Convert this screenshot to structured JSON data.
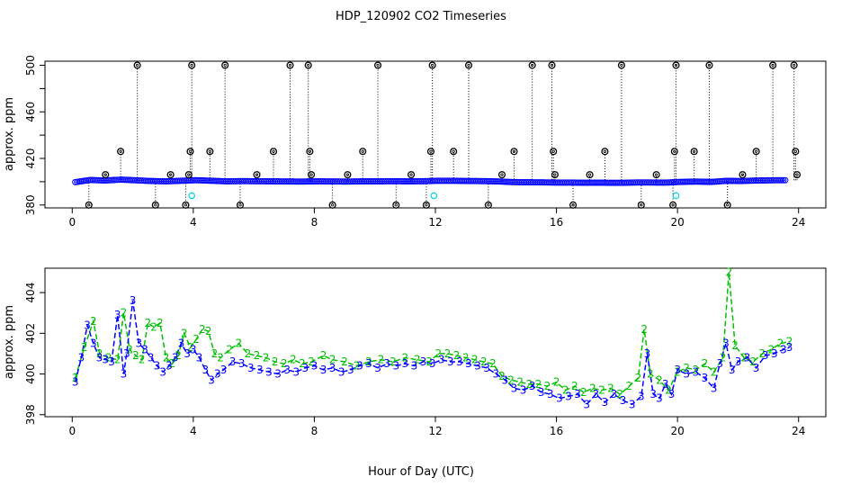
{
  "figure": {
    "title": "HDP_120902  CO2 Timeseries",
    "xlabel": "Hour of Day (UTC)"
  },
  "chart_data": [
    {
      "type": "scatter",
      "ylabel": "approx. ppm",
      "xlim": [
        -0.9,
        24.9
      ],
      "ylim": [
        377.5,
        503.5
      ],
      "xticks": [
        0,
        4,
        8,
        12,
        16,
        20,
        24
      ],
      "yticks": [
        380,
        420,
        460,
        500
      ],
      "yticks_minor": [
        400,
        440,
        480
      ],
      "grid": false,
      "colors": {
        "blue": "#0000ff",
        "cyan": "#00d8d8",
        "flag": "#000000"
      },
      "series": [
        {
          "style": "blue-circles",
          "x": [
            0.1,
            0.6,
            1.1,
            1.6,
            2.1,
            2.6,
            3.1,
            3.6,
            4.1,
            4.6,
            5.1,
            5.6,
            6.1,
            6.6,
            7.1,
            7.6,
            8.1,
            8.6,
            9.1,
            9.6,
            10.1,
            10.6,
            11.1,
            11.6,
            12.1,
            12.6,
            13.1,
            13.6,
            14.1,
            14.6,
            15.1,
            15.6,
            16.1,
            16.6,
            17.1,
            17.6,
            18.1,
            18.6,
            19.1,
            19.6,
            20.1,
            20.6,
            21.1,
            21.6,
            22.1,
            22.6,
            23.1,
            23.6
          ],
          "y": [
            399.6,
            401.5,
            401.0,
            401.8,
            401.2,
            400.6,
            400.3,
            400.8,
            401.3,
            400.8,
            400.3,
            400.5,
            400.4,
            400.3,
            400.2,
            400.1,
            400.3,
            400.2,
            400.1,
            400.3,
            400.3,
            400.4,
            400.3,
            400.4,
            400.8,
            400.8,
            400.6,
            400.5,
            400.2,
            399.6,
            399.5,
            399.4,
            399.2,
            399.2,
            399.1,
            399.1,
            399.0,
            399.3,
            399.3,
            399.2,
            399.8,
            400.1,
            399.8,
            400.7,
            400.6,
            401.0,
            401.2,
            401.3
          ]
        },
        {
          "style": "cyan-circles",
          "x": [
            3.95,
            11.95,
            19.95
          ],
          "y": [
            388,
            388,
            388
          ]
        },
        {
          "style": "flag-circles",
          "x": [
            0.55,
            1.1,
            1.6,
            2.15,
            2.75,
            3.25,
            3.75,
            3.85,
            3.9,
            3.95,
            4.55,
            5.05,
            5.55,
            6.1,
            6.65,
            7.2,
            7.8,
            7.85,
            7.9,
            8.6,
            9.1,
            9.6,
            10.1,
            10.7,
            11.2,
            11.7,
            11.85,
            11.9,
            12.6,
            13.1,
            13.75,
            14.2,
            14.6,
            15.2,
            15.85,
            15.9,
            15.95,
            16.55,
            17.1,
            17.6,
            18.15,
            18.8,
            19.3,
            19.85,
            19.9,
            19.95,
            20.55,
            21.05,
            21.65,
            22.15,
            22.6,
            23.15,
            23.85,
            23.9,
            23.95
          ],
          "y": [
            380,
            406,
            426,
            500,
            380,
            406,
            380,
            406,
            426,
            500,
            426,
            500,
            380,
            406,
            426,
            500,
            500,
            426,
            406,
            380,
            406,
            426,
            500,
            380,
            406,
            380,
            426,
            500,
            426,
            500,
            380,
            406,
            426,
            500,
            500,
            426,
            406,
            380,
            406,
            426,
            500,
            380,
            406,
            380,
            426,
            500,
            426,
            500,
            380,
            406,
            426,
            500,
            500,
            426,
            406
          ]
        }
      ]
    },
    {
      "type": "line",
      "ylabel": "approx. ppm",
      "xlim": [
        -0.9,
        24.9
      ],
      "ylim": [
        397.9,
        405.2
      ],
      "xticks": [
        0,
        4,
        8,
        12,
        16,
        20,
        24
      ],
      "yticks": [
        398,
        400,
        402,
        404
      ],
      "grid": false,
      "colors": {
        "series2": "#00c000",
        "series3": "#0000ff"
      },
      "series": [
        {
          "marker": "2",
          "x": [
            0.1,
            0.4,
            0.7,
            0.9,
            1.2,
            1.5,
            1.7,
            1.9,
            2.1,
            2.3,
            2.5,
            2.7,
            2.9,
            3.1,
            3.3,
            3.5,
            3.7,
            3.9,
            4.1,
            4.3,
            4.5,
            4.7,
            4.9,
            5.2,
            5.5,
            5.8,
            6.1,
            6.4,
            6.7,
            7.0,
            7.3,
            7.6,
            7.9,
            8.3,
            8.6,
            9.0,
            9.4,
            9.8,
            10.2,
            10.6,
            11.0,
            11.4,
            11.8,
            12.1,
            12.4,
            12.7,
            13.0,
            13.3,
            13.6,
            13.9,
            14.2,
            14.5,
            14.8,
            15.1,
            15.4,
            15.7,
            16.0,
            16.3,
            16.6,
            16.9,
            17.2,
            17.5,
            17.8,
            18.1,
            18.4,
            18.7,
            18.9,
            19.1,
            19.4,
            19.7,
            20.0,
            20.3,
            20.6,
            20.9,
            21.2,
            21.5,
            21.7,
            21.9,
            22.2,
            22.5,
            22.8,
            23.1,
            23.4,
            23.7
          ],
          "y": [
            399.8,
            401.3,
            402.6,
            401.0,
            400.8,
            400.7,
            403.0,
            401.2,
            400.9,
            400.7,
            402.5,
            402.3,
            402.5,
            400.8,
            400.5,
            400.9,
            402.0,
            401.3,
            401.7,
            402.2,
            402.1,
            401.0,
            400.8,
            401.2,
            401.5,
            401.0,
            400.9,
            400.8,
            400.6,
            400.5,
            400.7,
            400.5,
            400.6,
            400.9,
            400.7,
            400.6,
            400.4,
            400.6,
            400.7,
            400.6,
            400.8,
            400.7,
            400.6,
            401.0,
            401.0,
            400.9,
            400.8,
            400.7,
            400.6,
            400.5,
            399.9,
            399.7,
            399.6,
            399.5,
            399.5,
            399.4,
            399.6,
            399.2,
            399.4,
            399.1,
            399.3,
            399.2,
            399.3,
            399.0,
            399.4,
            399.8,
            402.2,
            400.0,
            399.7,
            399.2,
            400.1,
            400.3,
            400.2,
            400.5,
            400.1,
            400.8,
            405.0,
            401.4,
            400.8,
            400.6,
            401.0,
            401.2,
            401.5,
            401.6
          ]
        },
        {
          "marker": "3",
          "x": [
            0.1,
            0.3,
            0.5,
            0.7,
            0.9,
            1.1,
            1.3,
            1.5,
            1.7,
            1.8,
            2.0,
            2.2,
            2.4,
            2.6,
            2.8,
            3.0,
            3.2,
            3.4,
            3.6,
            3.8,
            4.0,
            4.2,
            4.4,
            4.6,
            4.8,
            5.0,
            5.3,
            5.6,
            5.9,
            6.2,
            6.5,
            6.8,
            7.1,
            7.4,
            7.7,
            8.0,
            8.3,
            8.6,
            8.9,
            9.2,
            9.5,
            9.8,
            10.1,
            10.4,
            10.7,
            11.0,
            11.3,
            11.6,
            11.9,
            12.2,
            12.5,
            12.8,
            13.1,
            13.4,
            13.7,
            14.0,
            14.3,
            14.6,
            14.9,
            15.2,
            15.5,
            15.8,
            16.1,
            16.4,
            16.7,
            17.0,
            17.3,
            17.6,
            17.9,
            18.2,
            18.5,
            18.8,
            19.0,
            19.2,
            19.4,
            19.6,
            19.8,
            20.0,
            20.3,
            20.6,
            20.9,
            21.2,
            21.4,
            21.6,
            21.8,
            22.0,
            22.3,
            22.6,
            22.9,
            23.2,
            23.5,
            23.7
          ],
          "y": [
            399.6,
            400.8,
            402.4,
            401.5,
            400.8,
            400.7,
            400.6,
            402.9,
            400.0,
            401.0,
            403.6,
            401.5,
            401.2,
            400.8,
            400.4,
            400.1,
            400.4,
            400.8,
            401.5,
            401.0,
            401.2,
            400.8,
            400.2,
            399.7,
            400.0,
            400.2,
            400.6,
            400.5,
            400.3,
            400.2,
            400.1,
            400.0,
            400.2,
            400.1,
            400.3,
            400.4,
            400.2,
            400.3,
            400.1,
            400.2,
            400.4,
            400.5,
            400.3,
            400.5,
            400.4,
            400.5,
            400.4,
            400.6,
            400.5,
            400.7,
            400.6,
            400.6,
            400.5,
            400.4,
            400.3,
            400.0,
            399.7,
            399.3,
            399.2,
            399.4,
            399.1,
            399.0,
            398.8,
            398.9,
            399.0,
            398.5,
            399.0,
            398.6,
            399.0,
            398.7,
            398.5,
            398.9,
            401.0,
            399.0,
            398.8,
            399.5,
            399.0,
            400.2,
            400.0,
            400.1,
            399.8,
            399.3,
            400.5,
            401.5,
            400.2,
            400.6,
            400.8,
            400.3,
            400.9,
            401.0,
            401.2,
            401.3
          ]
        }
      ]
    }
  ]
}
